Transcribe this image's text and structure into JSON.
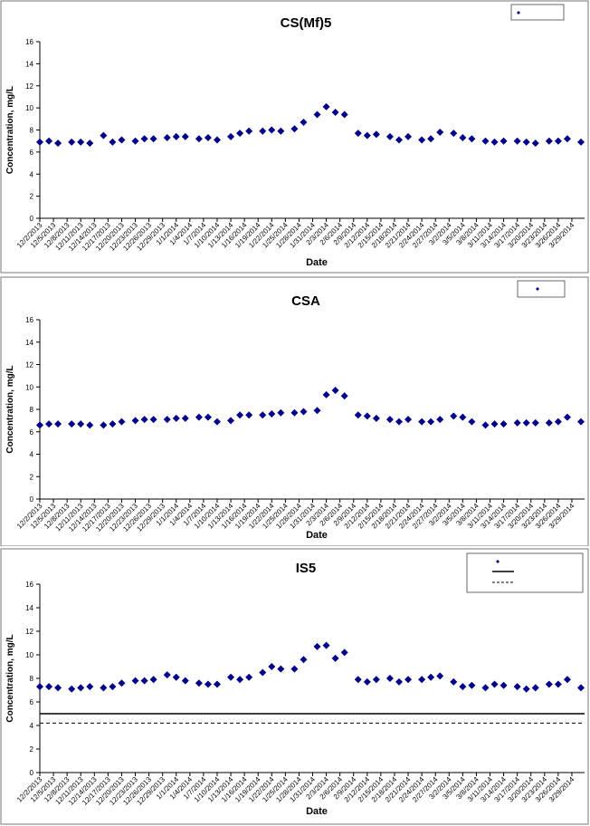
{
  "chart_data": [
    {
      "type": "scatter",
      "title": "CS(Mf)5",
      "xlabel": "Date",
      "ylabel": "Concentration, mg/L",
      "ylim": [
        0,
        16
      ],
      "yticks": [
        0,
        2,
        4,
        6,
        8,
        10,
        12,
        14,
        16
      ],
      "x_tick_labels": [
        "12/2/2013",
        "12/5/2013",
        "12/8/2013",
        "12/11/2013",
        "12/14/2013",
        "12/17/2013",
        "12/20/2013",
        "12/23/2013",
        "12/26/2013",
        "12/29/2013",
        "1/1/2014",
        "1/4/2014",
        "1/7/2014",
        "1/10/2014",
        "1/13/2014",
        "1/16/2014",
        "1/19/2014",
        "1/22/2014",
        "1/25/2014",
        "1/28/2014",
        "1/31/2014",
        "2/3/2014",
        "2/6/2014",
        "2/9/2014",
        "2/12/2014",
        "2/15/2014",
        "2/18/2014",
        "2/21/2014",
        "2/24/2014",
        "2/27/2014",
        "3/2/2014",
        "3/5/2014",
        "3/8/2014",
        "3/11/2014",
        "3/14/2014",
        "3/17/2014",
        "3/20/2014",
        "3/23/2014",
        "3/26/2014",
        "3/29/2014"
      ],
      "grid": false,
      "legend_position": "top-right",
      "series": [
        {
          "color": "#00008b",
          "marker": "diamond",
          "points": [
            [
              "12/2/2013",
              6.9
            ],
            [
              "12/4/2013",
              7.0
            ],
            [
              "12/6/2013",
              6.8
            ],
            [
              "12/9/2013",
              6.9
            ],
            [
              "12/11/2013",
              6.9
            ],
            [
              "12/13/2013",
              6.8
            ],
            [
              "12/16/2013",
              7.5
            ],
            [
              "12/18/2013",
              6.9
            ],
            [
              "12/20/2013",
              7.1
            ],
            [
              "12/23/2013",
              7.0
            ],
            [
              "12/25/2013",
              7.2
            ],
            [
              "12/27/2013",
              7.2
            ],
            [
              "12/30/2013",
              7.3
            ],
            [
              "1/1/2014",
              7.4
            ],
            [
              "1/3/2014",
              7.4
            ],
            [
              "1/6/2014",
              7.2
            ],
            [
              "1/8/2014",
              7.3
            ],
            [
              "1/10/2014",
              7.1
            ],
            [
              "1/13/2014",
              7.4
            ],
            [
              "1/15/2014",
              7.7
            ],
            [
              "1/17/2014",
              7.9
            ],
            [
              "1/20/2014",
              7.9
            ],
            [
              "1/22/2014",
              8.0
            ],
            [
              "1/24/2014",
              7.9
            ],
            [
              "1/27/2014",
              8.1
            ],
            [
              "1/29/2014",
              8.7
            ],
            [
              "2/1/2014",
              9.4
            ],
            [
              "2/3/2014",
              10.1
            ],
            [
              "2/5/2014",
              9.6
            ],
            [
              "2/7/2014",
              9.4
            ],
            [
              "2/10/2014",
              7.7
            ],
            [
              "2/12/2014",
              7.5
            ],
            [
              "2/14/2014",
              7.6
            ],
            [
              "2/17/2014",
              7.4
            ],
            [
              "2/19/2014",
              7.1
            ],
            [
              "2/21/2014",
              7.4
            ],
            [
              "2/24/2014",
              7.1
            ],
            [
              "2/26/2014",
              7.2
            ],
            [
              "2/28/2014",
              7.8
            ],
            [
              "3/3/2014",
              7.7
            ],
            [
              "3/5/2014",
              7.3
            ],
            [
              "3/7/2014",
              7.2
            ],
            [
              "3/10/2014",
              7.0
            ],
            [
              "3/12/2014",
              6.9
            ],
            [
              "3/14/2014",
              7.0
            ],
            [
              "3/17/2014",
              7.0
            ],
            [
              "3/19/2014",
              6.9
            ],
            [
              "3/21/2014",
              6.8
            ],
            [
              "3/24/2014",
              7.0
            ],
            [
              "3/26/2014",
              7.0
            ],
            [
              "3/28/2014",
              7.2
            ],
            [
              "3/31/2014",
              6.9
            ]
          ]
        }
      ]
    },
    {
      "type": "scatter",
      "title": "CSA",
      "xlabel": "Date",
      "ylabel": "Concentration, mg/L",
      "ylim": [
        0,
        16
      ],
      "yticks": [
        0,
        2,
        4,
        6,
        8,
        10,
        12,
        14,
        16
      ],
      "x_tick_labels": [
        "12/2/2013",
        "12/5/2013",
        "12/8/2013",
        "12/11/2013",
        "12/14/2013",
        "12/17/2013",
        "12/20/2013",
        "12/23/2013",
        "12/26/2013",
        "12/29/2013",
        "1/1/2014",
        "1/4/2014",
        "1/7/2014",
        "1/10/2014",
        "1/13/2014",
        "1/16/2014",
        "1/19/2014",
        "1/22/2014",
        "1/25/2014",
        "1/28/2014",
        "1/31/2014",
        "2/3/2014",
        "2/6/2014",
        "2/9/2014",
        "2/12/2014",
        "2/15/2014",
        "2/18/2014",
        "2/21/2014",
        "2/24/2014",
        "2/27/2014",
        "3/2/2014",
        "3/5/2014",
        "3/8/2014",
        "3/11/2014",
        "3/14/2014",
        "3/17/2014",
        "3/20/2014",
        "3/23/2014",
        "3/26/2014",
        "3/29/2014"
      ],
      "grid": false,
      "legend_position": "top-right",
      "series": [
        {
          "color": "#00008b",
          "marker": "diamond",
          "points": [
            [
              "12/2/2013",
              6.6
            ],
            [
              "12/4/2013",
              6.7
            ],
            [
              "12/6/2013",
              6.7
            ],
            [
              "12/9/2013",
              6.7
            ],
            [
              "12/11/2013",
              6.7
            ],
            [
              "12/13/2013",
              6.6
            ],
            [
              "12/16/2013",
              6.6
            ],
            [
              "12/18/2013",
              6.7
            ],
            [
              "12/20/2013",
              6.9
            ],
            [
              "12/23/2013",
              7.0
            ],
            [
              "12/25/2013",
              7.1
            ],
            [
              "12/27/2013",
              7.1
            ],
            [
              "12/30/2013",
              7.1
            ],
            [
              "1/1/2014",
              7.2
            ],
            [
              "1/3/2014",
              7.2
            ],
            [
              "1/6/2014",
              7.3
            ],
            [
              "1/8/2014",
              7.3
            ],
            [
              "1/10/2014",
              6.9
            ],
            [
              "1/13/2014",
              7.0
            ],
            [
              "1/15/2014",
              7.5
            ],
            [
              "1/17/2014",
              7.5
            ],
            [
              "1/20/2014",
              7.5
            ],
            [
              "1/22/2014",
              7.6
            ],
            [
              "1/24/2014",
              7.7
            ],
            [
              "1/27/2014",
              7.7
            ],
            [
              "1/29/2014",
              7.8
            ],
            [
              "2/1/2014",
              7.9
            ],
            [
              "2/3/2014",
              9.3
            ],
            [
              "2/5/2014",
              9.7
            ],
            [
              "2/7/2014",
              9.2
            ],
            [
              "2/10/2014",
              7.5
            ],
            [
              "2/12/2014",
              7.4
            ],
            [
              "2/14/2014",
              7.2
            ],
            [
              "2/17/2014",
              7.1
            ],
            [
              "2/19/2014",
              6.9
            ],
            [
              "2/21/2014",
              7.1
            ],
            [
              "2/24/2014",
              6.9
            ],
            [
              "2/26/2014",
              6.9
            ],
            [
              "2/28/2014",
              7.1
            ],
            [
              "3/3/2014",
              7.4
            ],
            [
              "3/5/2014",
              7.3
            ],
            [
              "3/7/2014",
              6.9
            ],
            [
              "3/10/2014",
              6.6
            ],
            [
              "3/12/2014",
              6.7
            ],
            [
              "3/14/2014",
              6.7
            ],
            [
              "3/17/2014",
              6.8
            ],
            [
              "3/19/2014",
              6.8
            ],
            [
              "3/21/2014",
              6.8
            ],
            [
              "3/24/2014",
              6.8
            ],
            [
              "3/26/2014",
              6.9
            ],
            [
              "3/28/2014",
              7.3
            ],
            [
              "3/31/2014",
              6.9
            ]
          ]
        }
      ]
    },
    {
      "type": "scatter",
      "title": "IS5",
      "xlabel": "Date",
      "ylabel": "Concentration, mg/L",
      "ylim": [
        0,
        16
      ],
      "yticks": [
        0,
        2,
        4,
        6,
        8,
        10,
        12,
        14,
        16
      ],
      "x_tick_labels": [
        "12/2/2013",
        "12/5/2013",
        "12/8/2013",
        "12/11/2013",
        "12/14/2013",
        "12/17/2013",
        "12/20/2013",
        "12/23/2013",
        "12/26/2013",
        "12/29/2013",
        "1/1/2014",
        "1/4/2014",
        "1/7/2014",
        "1/10/2014",
        "1/13/2014",
        "1/16/2014",
        "1/19/2014",
        "1/22/2014",
        "1/25/2014",
        "1/28/2014",
        "1/31/2014",
        "2/3/2014",
        "2/6/2014",
        "2/9/2014",
        "2/12/2014",
        "2/15/2014",
        "2/18/2014",
        "2/21/2014",
        "2/24/2014",
        "2/27/2014",
        "3/2/2014",
        "3/5/2014",
        "3/8/2014",
        "3/11/2014",
        "3/14/2014",
        "3/17/2014",
        "3/20/2014",
        "3/23/2014",
        "3/26/2014",
        "3/29/2014"
      ],
      "grid": false,
      "legend_position": "top-right",
      "series": [
        {
          "color": "#00008b",
          "marker": "diamond",
          "points": [
            [
              "12/2/2013",
              7.3
            ],
            [
              "12/4/2013",
              7.3
            ],
            [
              "12/6/2013",
              7.2
            ],
            [
              "12/9/2013",
              7.1
            ],
            [
              "12/11/2013",
              7.2
            ],
            [
              "12/13/2013",
              7.3
            ],
            [
              "12/16/2013",
              7.2
            ],
            [
              "12/18/2013",
              7.3
            ],
            [
              "12/20/2013",
              7.6
            ],
            [
              "12/23/2013",
              7.8
            ],
            [
              "12/25/2013",
              7.8
            ],
            [
              "12/27/2013",
              7.9
            ],
            [
              "12/30/2013",
              8.3
            ],
            [
              "1/1/2014",
              8.1
            ],
            [
              "1/3/2014",
              7.8
            ],
            [
              "1/6/2014",
              7.6
            ],
            [
              "1/8/2014",
              7.5
            ],
            [
              "1/10/2014",
              7.5
            ],
            [
              "1/13/2014",
              8.1
            ],
            [
              "1/15/2014",
              7.9
            ],
            [
              "1/17/2014",
              8.1
            ],
            [
              "1/20/2014",
              8.5
            ],
            [
              "1/22/2014",
              9.0
            ],
            [
              "1/24/2014",
              8.8
            ],
            [
              "1/27/2014",
              8.8
            ],
            [
              "1/29/2014",
              9.6
            ],
            [
              "2/1/2014",
              10.7
            ],
            [
              "2/3/2014",
              10.8
            ],
            [
              "2/5/2014",
              9.7
            ],
            [
              "2/7/2014",
              10.2
            ],
            [
              "2/10/2014",
              7.9
            ],
            [
              "2/12/2014",
              7.7
            ],
            [
              "2/14/2014",
              7.9
            ],
            [
              "2/17/2014",
              8.0
            ],
            [
              "2/19/2014",
              7.7
            ],
            [
              "2/21/2014",
              7.9
            ],
            [
              "2/24/2014",
              7.9
            ],
            [
              "2/26/2014",
              8.1
            ],
            [
              "2/28/2014",
              8.2
            ],
            [
              "3/3/2014",
              7.7
            ],
            [
              "3/5/2014",
              7.3
            ],
            [
              "3/7/2014",
              7.4
            ],
            [
              "3/10/2014",
              7.2
            ],
            [
              "3/12/2014",
              7.5
            ],
            [
              "3/14/2014",
              7.4
            ],
            [
              "3/17/2014",
              7.3
            ],
            [
              "3/19/2014",
              7.1
            ],
            [
              "3/21/2014",
              7.2
            ],
            [
              "3/24/2014",
              7.5
            ],
            [
              "3/26/2014",
              7.5
            ],
            [
              "3/28/2014",
              7.9
            ],
            [
              "3/31/2014",
              7.2
            ]
          ]
        }
      ],
      "reference_lines": [
        {
          "value": 5.0,
          "style": "solid"
        },
        {
          "value": 4.2,
          "style": "dashed"
        }
      ]
    }
  ]
}
